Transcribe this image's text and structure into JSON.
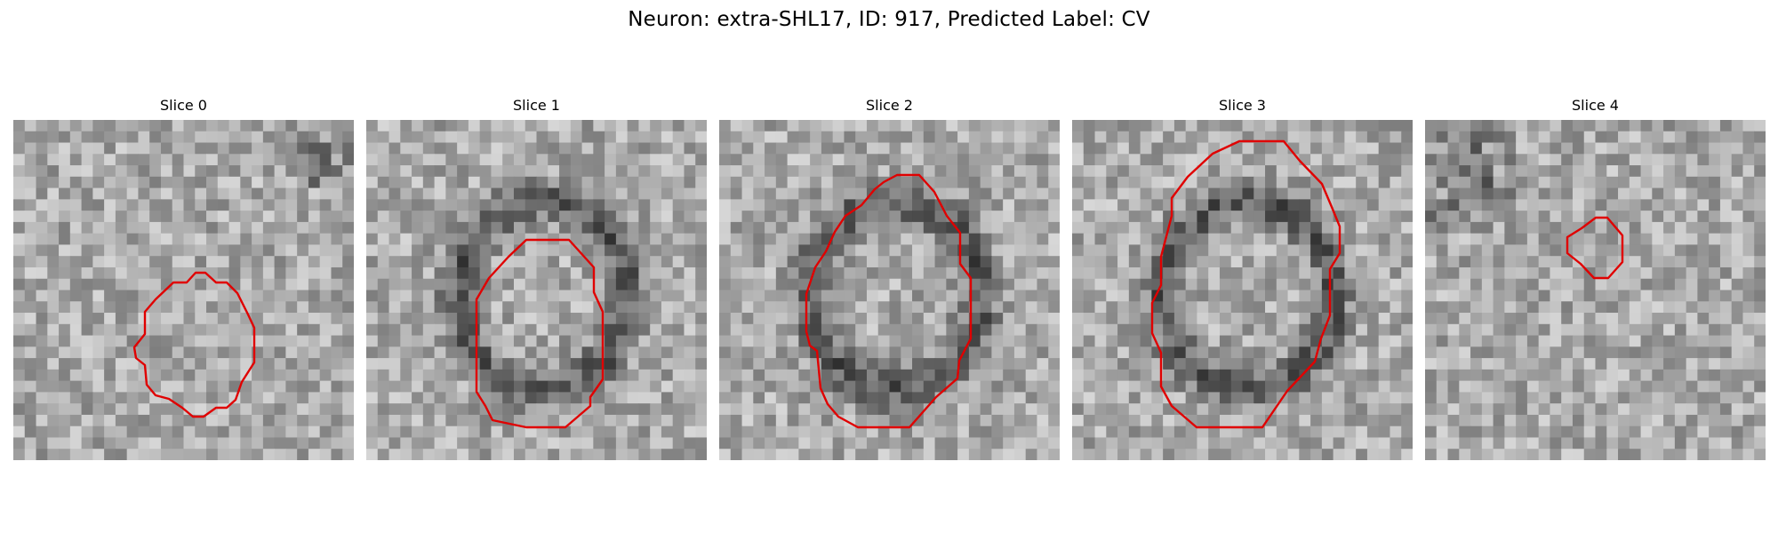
{
  "figure": {
    "title": "Neuron: extra-SHL17, ID: 917, Predicted Label: CV"
  },
  "panels": [
    {
      "title": "Slice 0",
      "seed": 17,
      "contour_color": "#e00000"
    },
    {
      "title": "Slice 1",
      "seed": 41,
      "contour_color": "#e00000"
    },
    {
      "title": "Slice 2",
      "seed": 73,
      "contour_color": "#e00000"
    },
    {
      "title": "Slice 3",
      "seed": 97,
      "contour_color": "#e00000"
    },
    {
      "title": "Slice 4",
      "seed": 131,
      "contour_color": "#e00000"
    }
  ]
}
